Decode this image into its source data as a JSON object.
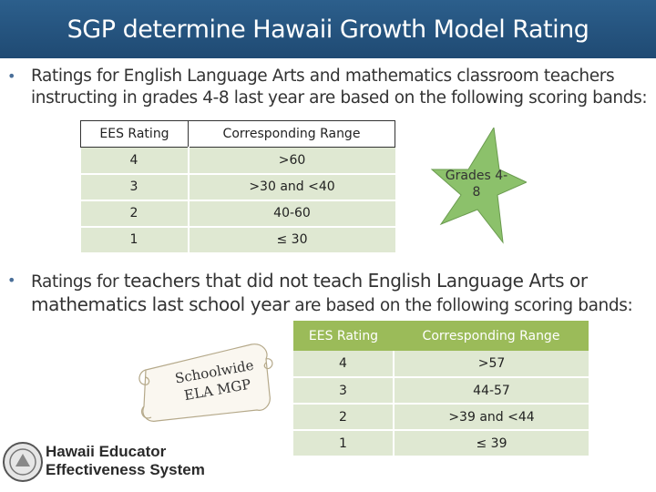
{
  "title": "SGP determine Hawaii Growth Model Rating",
  "bullet1": {
    "text": "Ratings for English Language Arts and mathematics classroom teachers instructing in grades 4-8 last year are based on the following scoring bands:"
  },
  "table1": {
    "headers": [
      "EES Rating",
      "Corresponding Range"
    ],
    "rows": [
      [
        "4",
        ">60"
      ],
      [
        "3",
        ">30 and <40"
      ],
      [
        "2",
        "40-60"
      ],
      [
        "1",
        "≤ 30"
      ]
    ]
  },
  "star": {
    "label_line1": "Grades 4-",
    "label_line2": "8",
    "color": "#8cc16b"
  },
  "bullet2": {
    "small_start": "Ratings for ",
    "big_part1": "teachers that did not teach English Language Arts or mathematics last school year",
    "small_end": " are based on the following scoring bands:"
  },
  "table2": {
    "headers": [
      "EES Rating",
      "Corresponding Range"
    ],
    "rows": [
      [
        "4",
        ">57"
      ],
      [
        "3",
        "44-57"
      ],
      [
        "2",
        ">39 and <44"
      ],
      [
        "1",
        "≤ 39"
      ]
    ]
  },
  "scroll": {
    "line1": "Schoolwide",
    "line2": "ELA MGP"
  },
  "logo": {
    "line1": "Hawaii Educator",
    "line2": "Effectiveness System"
  }
}
